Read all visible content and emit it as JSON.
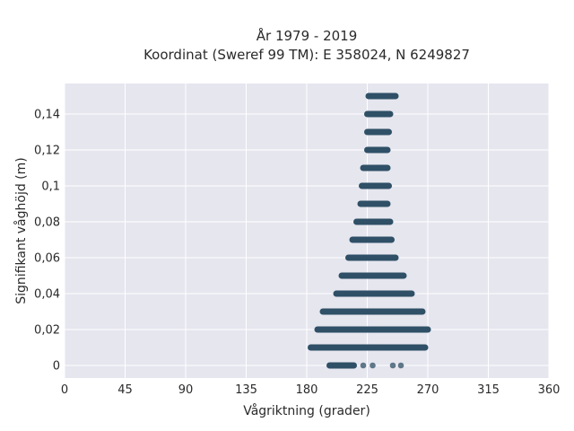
{
  "chart_data": {
    "type": "scatter",
    "title": "År 1979 - 2019",
    "subtitle": "Koordinat (Sweref 99 TM): E 358024, N 6249827",
    "xlabel": "Vågriktning (grader)",
    "ylabel": "Signifikant våghöjd (m)",
    "xlim": [
      0,
      360
    ],
    "ylim": [
      -0.007,
      0.157
    ],
    "x_ticks": [
      0,
      45,
      90,
      135,
      180,
      225,
      270,
      315,
      360
    ],
    "x_tick_labels": [
      "0",
      "45",
      "90",
      "135",
      "180",
      "225",
      "270",
      "315",
      "360"
    ],
    "y_ticks": [
      0,
      0.02,
      0.04,
      0.06,
      0.08,
      0.1,
      0.12,
      0.14
    ],
    "y_tick_labels": [
      "0",
      "0,02",
      "0,04",
      "0,06",
      "0,08",
      "0,1",
      "0,12",
      "0,14"
    ],
    "grid": true,
    "marker_color": "#2f5066",
    "background_color": "#e6e6ef",
    "series": [
      {
        "bands": [
          {
            "y": 0.0,
            "xmin": 197,
            "xmax": 215,
            "extra_x": [
              222,
              229,
              244,
              250
            ]
          },
          {
            "y": 0.01,
            "xmin": 183,
            "xmax": 268
          },
          {
            "y": 0.02,
            "xmin": 188,
            "xmax": 270
          },
          {
            "y": 0.03,
            "xmin": 192,
            "xmax": 266
          },
          {
            "y": 0.04,
            "xmin": 202,
            "xmax": 258
          },
          {
            "y": 0.05,
            "xmin": 206,
            "xmax": 252
          },
          {
            "y": 0.06,
            "xmin": 211,
            "xmax": 246
          },
          {
            "y": 0.07,
            "xmin": 214,
            "xmax": 243
          },
          {
            "y": 0.08,
            "xmin": 217,
            "xmax": 242
          },
          {
            "y": 0.09,
            "xmin": 220,
            "xmax": 240
          },
          {
            "y": 0.1,
            "xmin": 221,
            "xmax": 241
          },
          {
            "y": 0.11,
            "xmin": 222,
            "xmax": 240
          },
          {
            "y": 0.12,
            "xmin": 225,
            "xmax": 240
          },
          {
            "y": 0.13,
            "xmin": 225,
            "xmax": 241
          },
          {
            "y": 0.14,
            "xmin": 225,
            "xmax": 242
          },
          {
            "y": 0.15,
            "xmin": 226,
            "xmax": 246
          }
        ]
      }
    ]
  }
}
